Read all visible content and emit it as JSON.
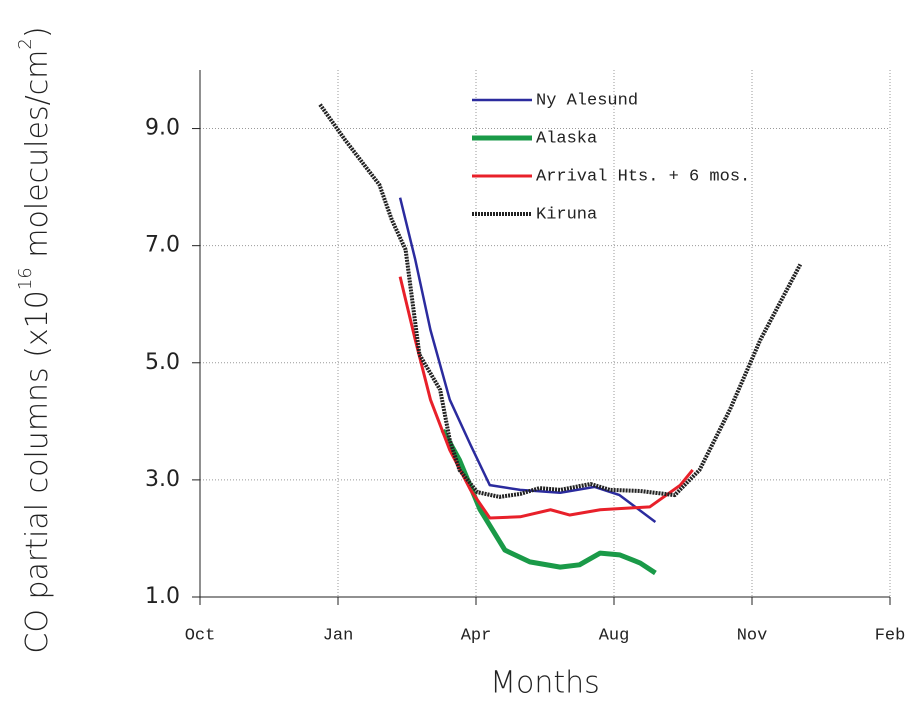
{
  "chart_data": {
    "type": "line",
    "x_label": "Months",
    "y_label_parts": [
      "CO partial columns (x10",
      "16",
      " molecules/cm",
      "2",
      ")"
    ],
    "xlim": [
      0,
      5
    ],
    "xticks": [
      {
        "value": 0,
        "label": "Oct"
      },
      {
        "value": 1,
        "label": "Jan"
      },
      {
        "value": 2,
        "label": "Apr"
      },
      {
        "value": 3,
        "label": "Aug"
      },
      {
        "value": 4,
        "label": "Nov"
      },
      {
        "value": 5,
        "label": "Feb"
      }
    ],
    "ylim": [
      1,
      10
    ],
    "yticks": [
      {
        "value": 1,
        "label": "1.0"
      },
      {
        "value": 3,
        "label": "3.0"
      },
      {
        "value": 5,
        "label": "5.0"
      },
      {
        "value": 7,
        "label": "7.0"
      },
      {
        "value": 9,
        "label": "9.0"
      }
    ],
    "grid": true,
    "legend": "top",
    "series": [
      {
        "name": "Ny Alesund",
        "color": "#2b2b9e",
        "x": [
          1.45,
          1.56,
          1.67,
          1.81,
          1.96,
          2.1,
          2.32,
          2.61,
          2.86,
          3.04,
          3.3
        ],
        "values": [
          7.82,
          6.76,
          5.56,
          4.37,
          3.6,
          2.91,
          2.83,
          2.78,
          2.88,
          2.74,
          2.28
        ]
      },
      {
        "name": "Alaska",
        "color": "#1a9a48",
        "x": [
          1.76,
          1.88,
          2.03,
          2.21,
          2.39,
          2.61,
          2.75,
          2.9,
          3.04,
          3.19,
          3.3
        ],
        "values": [
          3.85,
          3.34,
          2.49,
          1.8,
          1.6,
          1.51,
          1.55,
          1.75,
          1.72,
          1.58,
          1.41
        ]
      },
      {
        "name": "Arrival Hts. + 6 mos.",
        "color": "#e8202a",
        "x": [
          1.45,
          1.56,
          1.67,
          1.81,
          1.96,
          2.1,
          2.32,
          2.54,
          2.68,
          2.9,
          3.26,
          3.48,
          3.57
        ],
        "values": [
          6.47,
          5.39,
          4.37,
          3.51,
          2.83,
          2.35,
          2.37,
          2.49,
          2.4,
          2.49,
          2.54,
          2.91,
          3.17
        ]
      },
      {
        "name": "Kiruna",
        "color": "#222222",
        "x": [
          0.87,
          1.05,
          1.3,
          1.39,
          1.49,
          1.59,
          1.74,
          1.81,
          1.88,
          2.01,
          2.17,
          2.32,
          2.46,
          2.61,
          2.83,
          2.97,
          3.19,
          3.44,
          3.62,
          3.84,
          4.06,
          4.35
        ],
        "values": [
          9.41,
          8.81,
          8.04,
          7.44,
          6.93,
          5.14,
          4.54,
          3.68,
          3.17,
          2.79,
          2.71,
          2.76,
          2.86,
          2.83,
          2.93,
          2.83,
          2.81,
          2.74,
          3.17,
          4.2,
          5.39,
          6.68
        ]
      }
    ]
  }
}
